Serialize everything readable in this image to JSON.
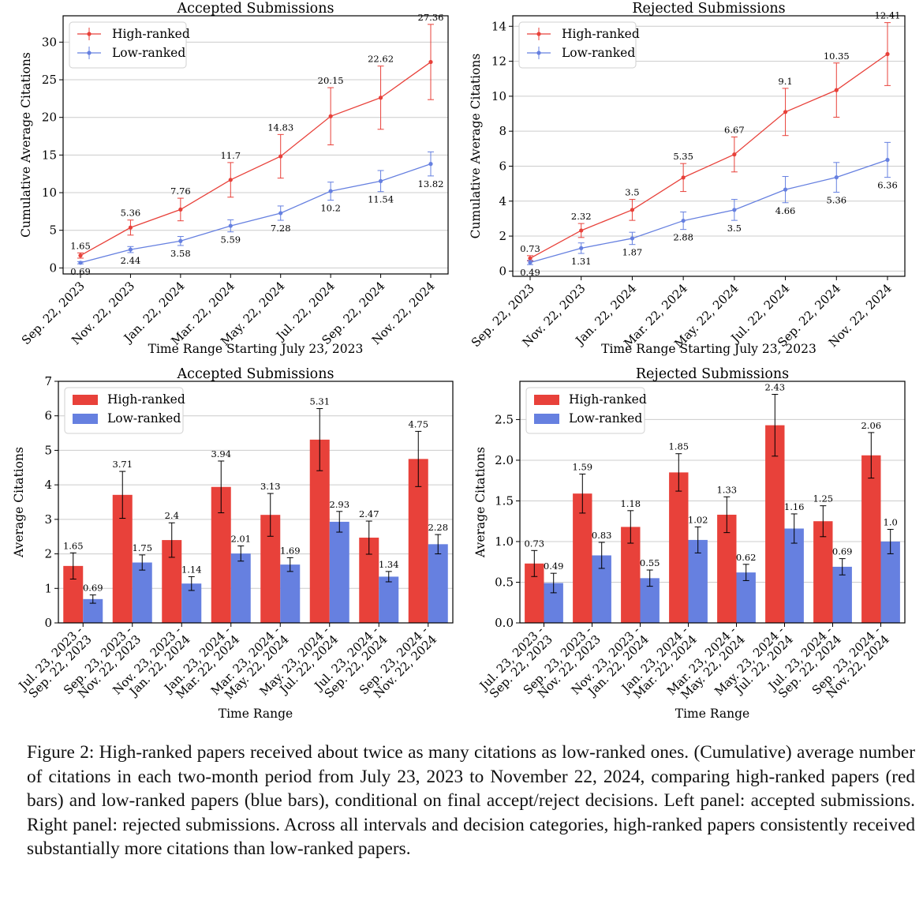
{
  "caption": "Figure 2: High-ranked papers received about twice as many citations as low-ranked ones. (Cumulative) average number of citations in each two-month period from July 23, 2023 to November 22, 2024, comparing high-ranked papers (red bars) and low-ranked papers (blue bars), conditional on final accept/reject decisions. Left panel: accepted submissions. Right panel: rejected submissions. Across all intervals and decision categories, high-ranked papers consistently received substantially more citations than low-ranked papers.",
  "colors": {
    "high": "#e8413a",
    "low": "#6680e0",
    "grid": "#cccccc"
  },
  "chart_data": [
    {
      "id": "cum-accepted",
      "type": "line",
      "title": "Accepted Submissions",
      "xlabel": "Time Range Starting July 23, 2023",
      "ylabel": "Cumulative Average Citations",
      "categories": [
        "Sep. 22, 2023",
        "Nov. 22, 2023",
        "Jan. 22, 2024",
        "Mar. 22, 2024",
        "May. 22, 2024",
        "Jul. 22, 2024",
        "Sep. 22, 2024",
        "Nov. 22, 2024"
      ],
      "ylim": [
        -0.8,
        33.5
      ],
      "yticks": [
        0,
        5,
        10,
        15,
        20,
        25,
        30
      ],
      "legend": "top-left",
      "series": [
        {
          "name": "High-ranked",
          "values": [
            1.65,
            5.36,
            7.76,
            11.7,
            14.83,
            20.15,
            22.62,
            27.36
          ],
          "errors": [
            0.35,
            1.0,
            1.5,
            2.3,
            2.9,
            3.8,
            4.2,
            5.0
          ],
          "labels": [
            "1.65",
            "5.36",
            "7.76",
            "11.7",
            "14.83",
            "20.15",
            "22.62",
            "27.36"
          ]
        },
        {
          "name": "Low-ranked",
          "values": [
            0.69,
            2.44,
            3.58,
            5.59,
            7.28,
            10.2,
            11.54,
            13.82
          ],
          "errors": [
            0.15,
            0.4,
            0.6,
            0.8,
            0.95,
            1.2,
            1.4,
            1.6
          ],
          "labels": [
            "0.69",
            "2.44",
            "3.58",
            "5.59",
            "7.28",
            "10.2",
            "11.54",
            "13.82"
          ]
        }
      ]
    },
    {
      "id": "cum-rejected",
      "type": "line",
      "title": "Rejected Submissions",
      "xlabel": "Time Range Starting July 23, 2023",
      "ylabel": "Cumulative Average Citations",
      "categories": [
        "Sep. 22, 2023",
        "Nov. 22, 2023",
        "Jan. 22, 2024",
        "Mar. 22, 2024",
        "May. 22, 2024",
        "Jul. 22, 2024",
        "Sep. 22, 2024",
        "Nov. 22, 2024"
      ],
      "ylim": [
        -0.3,
        14.6
      ],
      "yticks": [
        0,
        2,
        4,
        6,
        8,
        10,
        12,
        14
      ],
      "legend": "top-left",
      "series": [
        {
          "name": "High-ranked",
          "values": [
            0.73,
            2.32,
            3.5,
            5.35,
            6.67,
            9.1,
            10.35,
            12.41
          ],
          "errors": [
            0.15,
            0.4,
            0.6,
            0.8,
            1.0,
            1.35,
            1.55,
            1.8
          ],
          "labels": [
            "0.73",
            "2.32",
            "3.5",
            "5.35",
            "6.67",
            "9.1",
            "10.35",
            "12.41"
          ]
        },
        {
          "name": "Low-ranked",
          "values": [
            0.49,
            1.31,
            1.87,
            2.88,
            3.5,
            4.66,
            5.36,
            6.36
          ],
          "errors": [
            0.12,
            0.3,
            0.35,
            0.5,
            0.6,
            0.75,
            0.85,
            1.0
          ],
          "labels": [
            "0.49",
            "1.31",
            "1.87",
            "2.88",
            "3.5",
            "4.66",
            "5.36",
            "6.36"
          ]
        }
      ]
    },
    {
      "id": "bar-accepted",
      "type": "bar",
      "title": "Accepted Submissions",
      "xlabel": "Time Range",
      "ylabel": "Average Citations",
      "categories": [
        [
          "Jul. 23, 2023 -",
          "Sep. 22, 2023"
        ],
        [
          "Sep. 23, 2023 -",
          "Nov. 22, 2023"
        ],
        [
          "Nov. 23, 2023 -",
          "Jan. 22, 2024"
        ],
        [
          "Jan. 23, 2024 -",
          "Mar. 22, 2024"
        ],
        [
          "Mar. 23, 2024 -",
          "May. 22, 2024"
        ],
        [
          "May. 23, 2024 -",
          "Jul. 22, 2024"
        ],
        [
          "Jul. 23, 2024 -",
          "Sep. 22, 2024"
        ],
        [
          "Sep. 23, 2024 -",
          "Nov. 22, 2024"
        ]
      ],
      "ylim": [
        0,
        7
      ],
      "yticks": [
        0,
        1,
        2,
        3,
        4,
        5,
        6,
        7
      ],
      "legend": "top-left",
      "series": [
        {
          "name": "High-ranked",
          "values": [
            1.65,
            3.71,
            2.4,
            3.94,
            3.13,
            5.31,
            2.47,
            4.75
          ],
          "errors": [
            0.38,
            0.68,
            0.5,
            0.75,
            0.62,
            0.9,
            0.48,
            0.8
          ],
          "labels": [
            "1.65",
            "3.71",
            "2.4",
            "3.94",
            "3.13",
            "5.31",
            "2.47",
            "4.75"
          ]
        },
        {
          "name": "Low-ranked",
          "values": [
            0.69,
            1.75,
            1.14,
            2.01,
            1.69,
            2.93,
            1.34,
            2.28
          ],
          "errors": [
            0.12,
            0.22,
            0.2,
            0.22,
            0.2,
            0.3,
            0.15,
            0.28
          ],
          "labels": [
            "0.69",
            "1.75",
            "1.14",
            "2.01",
            "1.69",
            "2.93",
            "1.34",
            "2.28"
          ]
        }
      ]
    },
    {
      "id": "bar-rejected",
      "type": "bar",
      "title": "Rejected Submissions",
      "xlabel": "Time Range",
      "ylabel": "Average Citations",
      "categories": [
        [
          "Jul. 23, 2023 -",
          "Sep. 22, 2023"
        ],
        [
          "Sep. 23, 2023 -",
          "Nov. 22, 2023"
        ],
        [
          "Nov. 23, 2023 -",
          "Jan. 22, 2024"
        ],
        [
          "Jan. 23, 2024 -",
          "Mar. 22, 2024"
        ],
        [
          "Mar. 23, 2024 -",
          "May. 22, 2024"
        ],
        [
          "May. 23, 2024 -",
          "Jul. 22, 2024"
        ],
        [
          "Jul. 23, 2024 -",
          "Sep. 22, 2024"
        ],
        [
          "Sep. 23, 2024 -",
          "Nov. 22, 2024"
        ]
      ],
      "ylim": [
        0,
        2.97
      ],
      "yticks": [
        0.0,
        0.5,
        1.0,
        1.5,
        2.0,
        2.5
      ],
      "ytick_format": 1,
      "legend": "top-left",
      "series": [
        {
          "name": "High-ranked",
          "values": [
            0.73,
            1.59,
            1.18,
            1.85,
            1.33,
            2.43,
            1.25,
            2.06
          ],
          "errors": [
            0.16,
            0.24,
            0.2,
            0.23,
            0.22,
            0.38,
            0.19,
            0.28
          ],
          "labels": [
            "0.73",
            "1.59",
            "1.18",
            "1.85",
            "1.33",
            "2.43",
            "1.25",
            "2.06"
          ]
        },
        {
          "name": "Low-ranked",
          "values": [
            0.49,
            0.83,
            0.55,
            1.02,
            0.62,
            1.16,
            0.69,
            1.0
          ],
          "errors": [
            0.12,
            0.16,
            0.1,
            0.16,
            0.1,
            0.18,
            0.1,
            0.15
          ],
          "labels": [
            "0.49",
            "0.83",
            "0.55",
            "1.02",
            "0.62",
            "1.16",
            "0.69",
            "1.0"
          ]
        }
      ]
    }
  ]
}
